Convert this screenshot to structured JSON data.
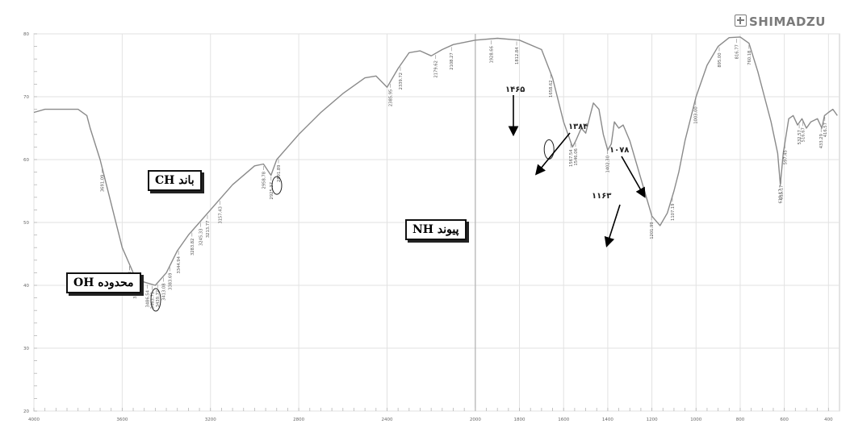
{
  "brand": {
    "name": "SHIMADZU"
  },
  "annotations": {
    "ch_band": "باند  CH",
    "oh_region": "محدوده OH",
    "nh_bond": "پیوند NH",
    "n1465": "۱۴۶۵",
    "n1384": "۱۳۸۴",
    "n1078": "۱۰۷۸",
    "n1163": "۱۱۶۳"
  },
  "chart_data": {
    "type": "line",
    "title": "",
    "xlabel": "",
    "ylabel": "",
    "x_reversed": true,
    "xlim": [
      4000,
      350
    ],
    "ylim": [
      20,
      80
    ],
    "grid": true,
    "xticks": [
      4000,
      3600,
      3200,
      2800,
      2400,
      2000,
      1800,
      1600,
      1400,
      1200,
      1000,
      800,
      600,
      400
    ],
    "yticks": [
      20,
      30,
      40,
      50,
      60,
      70,
      80
    ],
    "series": [
      {
        "points": [
          [
            4000,
            67.5
          ],
          [
            3950,
            68
          ],
          [
            3900,
            68
          ],
          [
            3850,
            68
          ],
          [
            3800,
            68
          ],
          [
            3760,
            67
          ],
          [
            3745,
            65
          ],
          [
            3700,
            60
          ],
          [
            3650,
            53
          ],
          [
            3600,
            46
          ],
          [
            3550,
            42
          ],
          [
            3500,
            40.5
          ],
          [
            3450,
            40
          ],
          [
            3400,
            42
          ],
          [
            3350,
            45.5
          ],
          [
            3300,
            48
          ],
          [
            3250,
            50
          ],
          [
            3200,
            52
          ],
          [
            3100,
            56
          ],
          [
            3000,
            59
          ],
          [
            2960,
            59.3
          ],
          [
            2926,
            57.5
          ],
          [
            2900,
            60
          ],
          [
            2850,
            62
          ],
          [
            2800,
            64
          ],
          [
            2700,
            67.5
          ],
          [
            2600,
            70.5
          ],
          [
            2500,
            73
          ],
          [
            2450,
            73.3
          ],
          [
            2400,
            71.5
          ],
          [
            2350,
            74.5
          ],
          [
            2300,
            77
          ],
          [
            2250,
            77.3
          ],
          [
            2200,
            76.5
          ],
          [
            2150,
            77.5
          ],
          [
            2100,
            78.3
          ],
          [
            2000,
            79
          ],
          [
            1900,
            79.3
          ],
          [
            1800,
            79
          ],
          [
            1700,
            77.5
          ],
          [
            1650,
            73
          ],
          [
            1600,
            66
          ],
          [
            1560,
            62
          ],
          [
            1545,
            63
          ],
          [
            1520,
            65
          ],
          [
            1500,
            64.2
          ],
          [
            1480,
            67
          ],
          [
            1465,
            69
          ],
          [
            1440,
            68
          ],
          [
            1420,
            64
          ],
          [
            1400,
            61.5
          ],
          [
            1384,
            62.5
          ],
          [
            1370,
            66
          ],
          [
            1350,
            65
          ],
          [
            1330,
            65.5
          ],
          [
            1300,
            63
          ],
          [
            1250,
            57
          ],
          [
            1200,
            51
          ],
          [
            1163,
            49.5
          ],
          [
            1130,
            51.5
          ],
          [
            1100,
            55
          ],
          [
            1078,
            58
          ],
          [
            1050,
            63
          ],
          [
            1000,
            70
          ],
          [
            950,
            75
          ],
          [
            900,
            78
          ],
          [
            850,
            79.4
          ],
          [
            800,
            79.5
          ],
          [
            760,
            78.5
          ],
          [
            720,
            74
          ],
          [
            690,
            70
          ],
          [
            660,
            66
          ],
          [
            630,
            61
          ],
          [
            618,
            56
          ],
          [
            605,
            61
          ],
          [
            580,
            66.5
          ],
          [
            560,
            67
          ],
          [
            540,
            65.5
          ],
          [
            520,
            66.5
          ],
          [
            500,
            65
          ],
          [
            480,
            66
          ],
          [
            450,
            66.5
          ],
          [
            430,
            65
          ],
          [
            418,
            67
          ],
          [
            400,
            67.5
          ],
          [
            380,
            68
          ],
          [
            360,
            67
          ]
        ]
      }
    ],
    "peak_labels": [
      {
        "x": 3691.09,
        "label": "3691.09"
      },
      {
        "x": 3565.89,
        "label": "3565.89"
      },
      {
        "x": 3566.63,
        "label": "3566.63"
      },
      {
        "x": 3541.94,
        "label": "3541.94"
      },
      {
        "x": 3486.54,
        "label": "3486.54"
      },
      {
        "x": 3463.71,
        "label": "3463.71"
      },
      {
        "x": 3439.72,
        "label": "3439.72"
      },
      {
        "x": 3413.08,
        "label": "3413.08"
      },
      {
        "x": 3383.69,
        "label": "3383.69"
      },
      {
        "x": 3344.94,
        "label": "3344.94"
      },
      {
        "x": 3283.82,
        "label": "3283.82"
      },
      {
        "x": 3245.33,
        "label": "3245.33"
      },
      {
        "x": 3213.77,
        "label": "3213.77"
      },
      {
        "x": 3157.43,
        "label": "3157.43"
      },
      {
        "x": 2958.78,
        "label": "2958.78"
      },
      {
        "x": 2925.37,
        "label": "2925.37"
      },
      {
        "x": 2891.89,
        "label": "2891.89"
      },
      {
        "x": 2385.95,
        "label": "2385.95"
      },
      {
        "x": 2339.72,
        "label": "2339.72"
      },
      {
        "x": 2179.62,
        "label": "2179.62"
      },
      {
        "x": 2108.27,
        "label": "2108.27"
      },
      {
        "x": 1928.66,
        "label": "1928.66"
      },
      {
        "x": 1812.84,
        "label": "1812.84"
      },
      {
        "x": 1567.54,
        "label": "1567.54"
      },
      {
        "x": 1546.06,
        "label": "1546.06"
      },
      {
        "x": 1658.62,
        "label": "1658.62"
      },
      {
        "x": 1402.3,
        "label": "1402.30"
      },
      {
        "x": 1201.99,
        "label": "1201.99"
      },
      {
        "x": 1107.19,
        "label": "1107.19"
      },
      {
        "x": 1003.0,
        "label": "1003.00"
      },
      {
        "x": 895.0,
        "label": "895.00"
      },
      {
        "x": 816.77,
        "label": "816.77"
      },
      {
        "x": 760.18,
        "label": "760.18"
      },
      {
        "x": 619.17,
        "label": "619.17"
      },
      {
        "x": 615.17,
        "label": "615.17"
      },
      {
        "x": 597.45,
        "label": "597.45"
      },
      {
        "x": 532.57,
        "label": "532.57"
      },
      {
        "x": 516.67,
        "label": "516.67"
      },
      {
        "x": 433.29,
        "label": "433.29"
      },
      {
        "x": 416.57,
        "label": "416.57"
      }
    ]
  }
}
